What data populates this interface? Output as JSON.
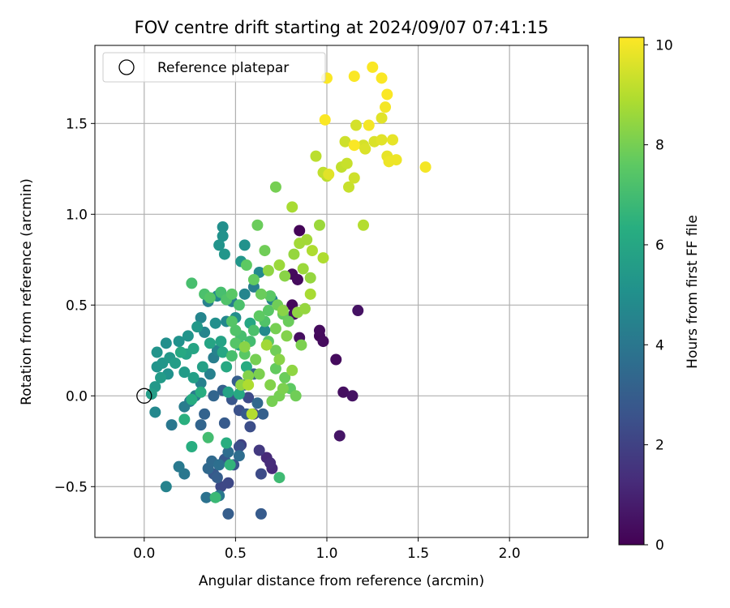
{
  "chart_data": {
    "type": "scatter",
    "title": "FOV centre drift starting at 2024/09/07 07:41:15",
    "xlabel": "Angular distance from reference (arcmin)",
    "ylabel": "Rotation from reference (arcmin)",
    "xlim": [
      -0.27,
      2.43
    ],
    "ylim": [
      -0.78,
      1.93
    ],
    "xticks": [
      0.0,
      0.5,
      1.0,
      1.5,
      2.0
    ],
    "xtick_labels": [
      "0.0",
      "0.5",
      "1.0",
      "1.5",
      "2.0"
    ],
    "yticks": [
      -0.5,
      0.0,
      0.5,
      1.0,
      1.5
    ],
    "ytick_labels": [
      "−0.5",
      "0.0",
      "0.5",
      "1.0",
      "1.5"
    ],
    "grid": true,
    "legend": {
      "placement": "top-left",
      "label": "Reference platepar"
    },
    "reference_point": {
      "x": 0.0,
      "y": 0.0
    },
    "colorbar": {
      "label": "Hours from first FF file",
      "colormap": "viridis",
      "min": 0,
      "max": 10.15,
      "ticks": [
        0,
        2,
        4,
        6,
        8,
        10
      ],
      "tick_labels": [
        "0",
        "2",
        "4",
        "6",
        "8",
        "10"
      ]
    },
    "series": [
      {
        "points": [
          [
            0.85,
            0.91,
            0.1
          ],
          [
            0.81,
            0.67,
            0.3
          ],
          [
            0.84,
            0.64,
            0.3
          ],
          [
            0.81,
            0.5,
            0.2
          ],
          [
            0.82,
            0.45,
            0.4
          ],
          [
            0.96,
            0.36,
            0.3
          ],
          [
            0.96,
            0.33,
            0.2
          ],
          [
            0.85,
            0.32,
            0.4
          ],
          [
            0.98,
            0.3,
            0.3
          ],
          [
            1.05,
            0.2,
            0.3
          ],
          [
            1.17,
            0.47,
            0.5
          ],
          [
            1.09,
            0.02,
            0.4
          ],
          [
            1.14,
            0.0,
            0.5
          ],
          [
            1.07,
            -0.22,
            0.6
          ],
          [
            0.67,
            -0.34,
            1.2
          ],
          [
            0.69,
            -0.37,
            1.3
          ],
          [
            0.7,
            -0.4,
            1.2
          ],
          [
            0.63,
            -0.3,
            1.7
          ],
          [
            0.53,
            -0.27,
            2.0
          ],
          [
            0.6,
            -0.1,
            2.1
          ],
          [
            0.52,
            -0.28,
            2.4
          ],
          [
            0.64,
            -0.43,
            2.3
          ],
          [
            0.46,
            -0.48,
            2.2
          ],
          [
            0.42,
            -0.5,
            2.2
          ],
          [
            0.49,
            -0.38,
            2.6
          ],
          [
            0.44,
            -0.35,
            2.8
          ],
          [
            0.52,
            -0.08,
            2.5
          ],
          [
            0.48,
            -0.02,
            2.7
          ],
          [
            0.57,
            -0.01,
            2.3
          ],
          [
            0.56,
            -0.1,
            2.9
          ],
          [
            0.58,
            -0.17,
            2.4
          ],
          [
            0.44,
            -0.15,
            2.9
          ],
          [
            0.38,
            -0.43,
            2.8
          ],
          [
            0.4,
            -0.45,
            3.0
          ],
          [
            0.64,
            -0.65,
            2.9
          ],
          [
            0.46,
            -0.65,
            3.0
          ],
          [
            0.33,
            -0.1,
            3.2
          ],
          [
            0.31,
            -0.16,
            3.3
          ],
          [
            0.38,
            0.0,
            3.3
          ],
          [
            0.43,
            0.03,
            3.1
          ],
          [
            0.51,
            0.08,
            3.0
          ],
          [
            0.55,
            0.06,
            3.3
          ],
          [
            0.6,
            0.12,
            3.2
          ],
          [
            0.62,
            -0.04,
            3.4
          ],
          [
            0.65,
            -0.1,
            3.1
          ],
          [
            0.37,
            -0.36,
            3.5
          ],
          [
            0.46,
            -0.31,
            3.6
          ],
          [
            0.52,
            -0.33,
            3.6
          ],
          [
            0.35,
            -0.4,
            3.4
          ],
          [
            0.41,
            -0.38,
            3.7
          ],
          [
            0.34,
            -0.56,
            3.8
          ],
          [
            0.41,
            -0.55,
            4.0
          ],
          [
            0.22,
            -0.43,
            4.0
          ],
          [
            0.19,
            -0.39,
            4.1
          ],
          [
            0.15,
            -0.16,
            4.0
          ],
          [
            0.22,
            -0.06,
            4.2
          ],
          [
            0.25,
            -0.03,
            4.1
          ],
          [
            0.28,
            0.0,
            4.2
          ],
          [
            0.31,
            0.07,
            4.4
          ],
          [
            0.36,
            0.12,
            4.4
          ],
          [
            0.38,
            0.21,
            4.3
          ],
          [
            0.4,
            0.25,
            4.5
          ],
          [
            0.33,
            0.35,
            4.6
          ],
          [
            0.31,
            0.43,
            4.6
          ],
          [
            0.35,
            0.52,
            4.4
          ],
          [
            0.4,
            0.55,
            4.7
          ],
          [
            0.48,
            0.52,
            4.3
          ],
          [
            0.55,
            0.56,
            4.6
          ],
          [
            0.6,
            0.6,
            4.3
          ],
          [
            0.63,
            0.68,
            4.8
          ],
          [
            0.7,
            0.53,
            4.5
          ],
          [
            0.66,
            0.36,
            4.8
          ],
          [
            0.5,
            0.43,
            4.9
          ],
          [
            0.45,
            0.41,
            4.7
          ],
          [
            0.12,
            -0.5,
            4.5
          ],
          [
            0.06,
            -0.09,
            4.7
          ],
          [
            0.43,
            0.93,
            5.0
          ],
          [
            0.43,
            0.88,
            5.1
          ],
          [
            0.41,
            0.83,
            5.2
          ],
          [
            0.44,
            0.78,
            5.3
          ],
          [
            0.55,
            0.83,
            5.1
          ],
          [
            0.53,
            0.74,
            5.3
          ],
          [
            0.39,
            0.4,
            5.0
          ],
          [
            0.29,
            0.38,
            5.4
          ],
          [
            0.24,
            0.33,
            5.2
          ],
          [
            0.19,
            0.3,
            5.1
          ],
          [
            0.12,
            0.29,
            5.0
          ],
          [
            0.07,
            0.24,
            5.2
          ],
          [
            0.14,
            0.21,
            5.4
          ],
          [
            0.1,
            0.18,
            5.3
          ],
          [
            0.07,
            0.16,
            5.2
          ],
          [
            0.13,
            0.12,
            5.1
          ],
          [
            0.09,
            0.1,
            5.5
          ],
          [
            0.06,
            0.05,
            5.4
          ],
          [
            0.04,
            0.01,
            5.6
          ],
          [
            0.17,
            0.18,
            5.6
          ],
          [
            0.22,
            0.13,
            5.5
          ],
          [
            0.27,
            0.1,
            5.7
          ],
          [
            0.32,
            0.16,
            5.7
          ],
          [
            0.27,
            0.26,
            5.9
          ],
          [
            0.23,
            0.23,
            5.8
          ],
          [
            0.2,
            0.24,
            6.1
          ],
          [
            0.36,
            0.29,
            5.9
          ],
          [
            0.42,
            0.3,
            5.8
          ],
          [
            0.43,
            0.24,
            6.0
          ],
          [
            0.45,
            0.16,
            6.1
          ],
          [
            0.46,
            0.02,
            5.8
          ],
          [
            0.52,
            0.01,
            6.1
          ],
          [
            0.56,
            0.16,
            6.2
          ],
          [
            0.52,
            0.28,
            6.0
          ],
          [
            0.58,
            0.4,
            6.0
          ],
          [
            0.31,
            0.02,
            6.3
          ],
          [
            0.26,
            -0.02,
            6.2
          ],
          [
            0.26,
            -0.28,
            6.3
          ],
          [
            0.22,
            -0.13,
            6.4
          ],
          [
            0.45,
            -0.26,
            6.3
          ],
          [
            0.47,
            -0.38,
            6.6
          ],
          [
            0.39,
            -0.56,
            6.8
          ],
          [
            0.74,
            -0.45,
            6.9
          ],
          [
            0.35,
            -0.23,
            7.0
          ],
          [
            0.26,
            0.62,
            7.1
          ],
          [
            0.33,
            0.56,
            7.2
          ],
          [
            0.36,
            0.54,
            7.4
          ],
          [
            0.42,
            0.57,
            7.1
          ],
          [
            0.45,
            0.53,
            7.3
          ],
          [
            0.48,
            0.56,
            7.5
          ],
          [
            0.52,
            0.5,
            7.2
          ],
          [
            0.48,
            0.41,
            7.4
          ],
          [
            0.5,
            0.36,
            7.3
          ],
          [
            0.53,
            0.33,
            7.1
          ],
          [
            0.5,
            0.29,
            7.4
          ],
          [
            0.48,
            0.22,
            7.1
          ],
          [
            0.55,
            0.23,
            7.5
          ],
          [
            0.58,
            0.3,
            7.0
          ],
          [
            0.6,
            0.36,
            7.2
          ],
          [
            0.63,
            0.44,
            7.6
          ],
          [
            0.66,
            0.41,
            7.3
          ],
          [
            0.68,
            0.47,
            7.5
          ],
          [
            0.56,
            0.72,
            7.6
          ],
          [
            0.62,
            0.94,
            7.8
          ],
          [
            0.66,
            0.8,
            7.9
          ],
          [
            0.72,
            1.15,
            8.0
          ],
          [
            0.6,
            0.64,
            7.7
          ],
          [
            0.64,
            0.56,
            7.8
          ],
          [
            0.69,
            0.55,
            7.5
          ],
          [
            0.73,
            0.5,
            7.9
          ],
          [
            0.76,
            0.45,
            7.7
          ],
          [
            0.79,
            0.41,
            7.8
          ],
          [
            0.72,
            0.37,
            8.0
          ],
          [
            0.68,
            0.3,
            7.6
          ],
          [
            0.72,
            0.25,
            7.9
          ],
          [
            0.72,
            0.15,
            7.7
          ],
          [
            0.77,
            0.1,
            7.8
          ],
          [
            0.8,
            0.04,
            7.6
          ],
          [
            0.76,
            0.04,
            8.1
          ],
          [
            0.74,
            0.0,
            8.0
          ],
          [
            0.83,
            0.0,
            7.9
          ],
          [
            0.7,
            -0.03,
            8.0
          ],
          [
            0.69,
            0.06,
            8.2
          ],
          [
            0.63,
            0.12,
            8.1
          ],
          [
            0.57,
            0.11,
            8.2
          ],
          [
            0.55,
            0.27,
            8.3
          ],
          [
            0.61,
            0.2,
            8.0
          ],
          [
            0.74,
            0.2,
            8.3
          ],
          [
            0.81,
            0.14,
            8.4
          ],
          [
            0.78,
            0.33,
            8.2
          ],
          [
            0.86,
            0.28,
            8.1
          ],
          [
            0.84,
            0.46,
            8.4
          ],
          [
            0.76,
            0.47,
            8.3
          ],
          [
            0.88,
            0.48,
            8.5
          ],
          [
            0.53,
            0.06,
            8.4
          ],
          [
            0.68,
            0.69,
            8.4
          ],
          [
            0.74,
            0.72,
            8.6
          ],
          [
            0.77,
            0.66,
            8.3
          ],
          [
            0.82,
            0.78,
            8.5
          ],
          [
            0.85,
            0.84,
            8.7
          ],
          [
            0.87,
            0.7,
            8.6
          ],
          [
            0.91,
            0.65,
            8.5
          ],
          [
            0.91,
            0.56,
            8.8
          ],
          [
            0.89,
            0.86,
            8.7
          ],
          [
            0.92,
            0.8,
            8.9
          ],
          [
            0.96,
            0.94,
            8.6
          ],
          [
            0.98,
            0.76,
            8.9
          ],
          [
            0.81,
            1.04,
            8.8
          ],
          [
            0.67,
            0.28,
            8.7
          ],
          [
            0.57,
            0.06,
            8.9
          ],
          [
            0.59,
            -0.1,
            9.0
          ],
          [
            1.2,
            0.94,
            9.0
          ],
          [
            0.94,
            1.32,
            9.1
          ],
          [
            0.98,
            1.23,
            9.2
          ],
          [
            1.0,
            1.21,
            9.1
          ],
          [
            1.08,
            1.26,
            9.2
          ],
          [
            1.11,
            1.28,
            9.3
          ],
          [
            1.12,
            1.15,
            9.3
          ],
          [
            1.15,
            1.2,
            9.4
          ],
          [
            1.1,
            1.4,
            9.4
          ],
          [
            1.16,
            1.49,
            9.5
          ],
          [
            1.2,
            1.38,
            9.5
          ],
          [
            1.21,
            1.36,
            9.6
          ],
          [
            1.26,
            1.4,
            9.6
          ],
          [
            1.3,
            1.41,
            9.7
          ],
          [
            1.3,
            1.53,
            9.7
          ],
          [
            1.36,
            1.41,
            9.8
          ],
          [
            1.33,
            1.32,
            9.8
          ],
          [
            1.34,
            1.29,
            9.9
          ],
          [
            1.38,
            1.3,
            9.9
          ],
          [
            1.54,
            1.26,
            10.0
          ],
          [
            1.23,
            1.49,
            10.0
          ],
          [
            1.32,
            1.59,
            10.0
          ],
          [
            1.33,
            1.66,
            10.1
          ],
          [
            1.3,
            1.75,
            10.1
          ],
          [
            1.25,
            1.81,
            10.1
          ],
          [
            1.15,
            1.76,
            10.1
          ],
          [
            1.0,
            1.75,
            10.1
          ],
          [
            0.99,
            1.52,
            10.1
          ],
          [
            1.15,
            1.38,
            10.1
          ],
          [
            1.01,
            1.22,
            9.7
          ]
        ]
      }
    ]
  }
}
